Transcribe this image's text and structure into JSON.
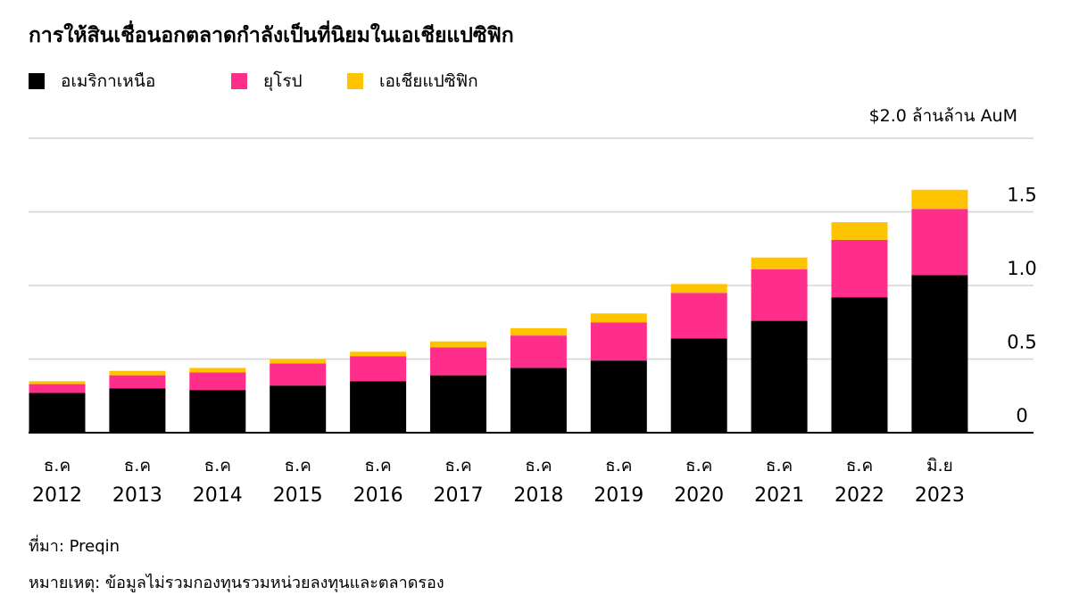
{
  "title": "การให้สินเชื่อนอกตลาดกำลังเป็นที่นิยมในเอเชียแปซิฟิก",
  "unit_label": "$2.0 ล้านล้าน AuM",
  "source": "ที่มา: Preqin",
  "note": "หมายเหตุ: ข้อมูลไม่รวมกองทุนรวมหน่วยลงทุนและตลาดรอง",
  "colors": {
    "north_america": "#000000",
    "europe": "#FF2E8B",
    "asia_pacific": "#FFC400",
    "grid": "#d4d4d4",
    "axis": "#000000"
  },
  "chart_data": {
    "type": "bar",
    "stacked": true,
    "categories": [
      {
        "line1": "ธ.ค",
        "line2": "2012"
      },
      {
        "line1": "ธ.ค",
        "line2": "2013"
      },
      {
        "line1": "ธ.ค",
        "line2": "2014"
      },
      {
        "line1": "ธ.ค",
        "line2": "2015"
      },
      {
        "line1": "ธ.ค",
        "line2": "2016"
      },
      {
        "line1": "ธ.ค",
        "line2": "2017"
      },
      {
        "line1": "ธ.ค",
        "line2": "2018"
      },
      {
        "line1": "ธ.ค",
        "line2": "2019"
      },
      {
        "line1": "ธ.ค",
        "line2": "2020"
      },
      {
        "line1": "ธ.ค",
        "line2": "2021"
      },
      {
        "line1": "ธ.ค",
        "line2": "2022"
      },
      {
        "line1": "มิ.ย",
        "line2": "2023"
      }
    ],
    "series": [
      {
        "name": "อเมริกาเหนือ",
        "key": "north_america",
        "values": [
          0.27,
          0.3,
          0.29,
          0.32,
          0.35,
          0.39,
          0.44,
          0.49,
          0.64,
          0.76,
          0.92,
          1.07
        ]
      },
      {
        "name": "ยุโรป",
        "key": "europe",
        "values": [
          0.06,
          0.09,
          0.12,
          0.15,
          0.17,
          0.19,
          0.22,
          0.26,
          0.31,
          0.35,
          0.39,
          0.45
        ]
      },
      {
        "name": "เอเชียแปซิฟิก",
        "key": "asia_pacific",
        "values": [
          0.02,
          0.03,
          0.03,
          0.03,
          0.03,
          0.04,
          0.05,
          0.06,
          0.06,
          0.08,
          0.12,
          0.13
        ]
      }
    ],
    "yticks": [
      {
        "value": 0,
        "label": "0"
      },
      {
        "value": 0.5,
        "label": "0.5"
      },
      {
        "value": 1.0,
        "label": "1.0"
      },
      {
        "value": 1.5,
        "label": "1.5"
      },
      {
        "value": 2.0,
        "label": ""
      }
    ],
    "ylim": [
      0,
      2.0
    ],
    "grid": true,
    "legend_position": "top-left"
  }
}
